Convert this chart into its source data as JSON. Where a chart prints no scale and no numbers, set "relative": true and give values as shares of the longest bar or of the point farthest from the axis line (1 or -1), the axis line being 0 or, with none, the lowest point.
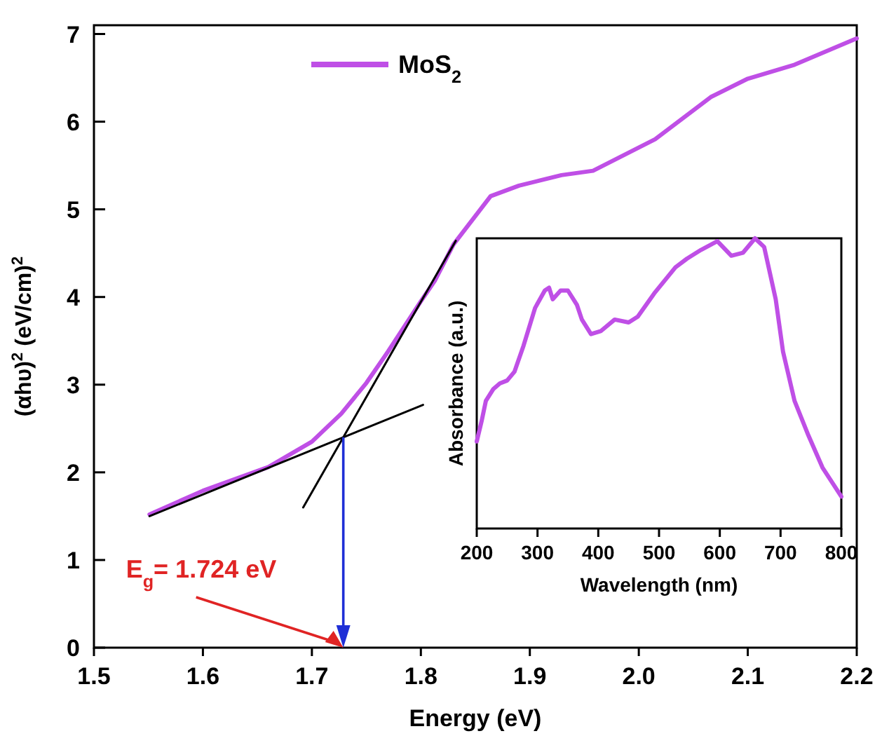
{
  "chart_data": [
    {
      "type": "line",
      "xlabel": "Energy (eV)",
      "ylabel": "(αhυ)$^{2}$ (eV/cm)$^{2}$",
      "xlim": [
        1.5,
        2.2
      ],
      "ylim": [
        0,
        7.1
      ],
      "xticks": [
        1.5,
        1.6,
        1.7,
        1.8,
        1.9,
        {
          "value": 2.0,
          "label": "2.0"
        },
        2.1,
        2.2
      ],
      "yticks": [
        0,
        1,
        2,
        3,
        4,
        5,
        6,
        7
      ],
      "legend": "top",
      "annotations": [
        "E$_{g}$= 1.724 eV"
      ],
      "series": [
        {
          "name": "MoS$_{2}$",
          "color": "#bf4fe6",
          "x": [
            1.551,
            1.6,
            1.66,
            1.7,
            1.727,
            1.75,
            1.77,
            1.8,
            1.813,
            1.83,
            1.864,
            1.89,
            1.929,
            1.958,
            2.015,
            2.066,
            2.1,
            2.143,
            2.2
          ],
          "values": [
            1.52,
            1.79,
            2.06,
            2.35,
            2.67,
            3.02,
            3.38,
            3.95,
            4.19,
            4.6,
            5.15,
            5.27,
            5.39,
            5.44,
            5.8,
            6.28,
            6.49,
            6.65,
            6.95
          ]
        },
        {
          "color": "#000000",
          "x": [
            1.551,
            1.802
          ],
          "values": [
            1.5,
            2.77
          ]
        },
        {
          "color": "#000000",
          "x": [
            1.692,
            1.832
          ],
          "values": [
            1.6,
            4.64
          ]
        }
      ]
    },
    {
      "type": "line",
      "xlabel": "Wavelength (nm)",
      "ylabel": "Absorbance (a.u.)",
      "xlim": [
        200,
        800
      ],
      "xticks": [
        200,
        300,
        400,
        500,
        600,
        700,
        800
      ],
      "relative": true,
      "series": [
        {
          "color": "#bf4fe6",
          "x": [
            200,
            208,
            215,
            227,
            238,
            250,
            262,
            277,
            296,
            312,
            319,
            325,
            338,
            350,
            365,
            373,
            388,
            404,
            427,
            450,
            465,
            492,
            527,
            546,
            569,
            596,
            619,
            638,
            658,
            673,
            692,
            704,
            723,
            746,
            769,
            800
          ],
          "values": [
            0.3,
            0.37,
            0.44,
            0.48,
            0.5,
            0.51,
            0.54,
            0.63,
            0.76,
            0.82,
            0.83,
            0.79,
            0.82,
            0.82,
            0.77,
            0.72,
            0.67,
            0.68,
            0.72,
            0.71,
            0.73,
            0.81,
            0.9,
            0.93,
            0.96,
            0.99,
            0.94,
            0.95,
            1.0,
            0.97,
            0.79,
            0.61,
            0.44,
            0.32,
            0.21,
            0.11
          ]
        }
      ]
    }
  ]
}
